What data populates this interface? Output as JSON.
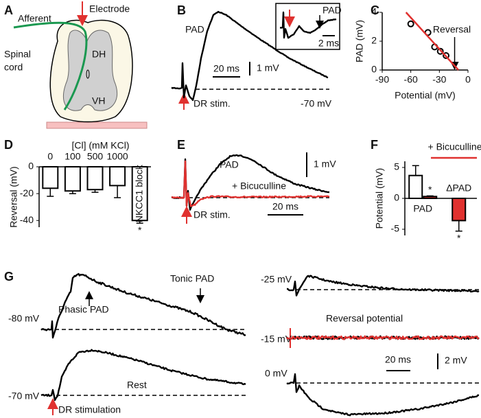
{
  "panel_labels": [
    "A",
    "B",
    "C",
    "D",
    "E",
    "F",
    "G"
  ],
  "panel_a": {
    "afferent": "Afferent",
    "electrode": "Electrode",
    "spinal_cord": [
      "Spinal",
      "cord"
    ],
    "dh": "DH",
    "vh": "VH"
  },
  "panel_b": {
    "pad": "PAD",
    "time_scale": "20 ms",
    "voltage_scale": "1 mV",
    "stimulus": "DR stim.",
    "rest": "-70 mV",
    "inset_pad": "PAD",
    "inset_time_scale": "2 ms"
  },
  "chart_data": [
    {
      "type": "scatter",
      "x_label": "Potential (mV)",
      "y_label": "PAD (mV)",
      "xlim": [
        -90,
        0
      ],
      "xticks": [
        -90,
        -60,
        -30,
        0
      ],
      "ylim": [
        0,
        4
      ],
      "yticks": [
        0,
        2,
        4
      ],
      "series": [
        {
          "color": "#000000",
          "x": [
            -60,
            -42,
            -35,
            -29,
            -23
          ],
          "values": [
            3.2,
            2.6,
            1.6,
            1.3,
            1.0
          ]
        },
        {
          "color": "#e0312f",
          "line": true,
          "x": [
            -65,
            -10
          ],
          "values": [
            4,
            0
          ]
        }
      ],
      "annotations": [
        {
          "text": "Reversal",
          "x": -14
        }
      ]
    },
    {
      "type": "bar",
      "title": "[Cl] (mM KCl)",
      "y_label": "Reversal (mV)",
      "categories": [
        "0",
        "100",
        "500",
        "1000",
        "NKCC1 block"
      ],
      "values": [
        -16,
        -18,
        -17,
        -14,
        -40
      ],
      "errors": [
        6,
        2,
        2,
        9,
        2
      ],
      "stars": [
        null,
        null,
        null,
        null,
        "*"
      ],
      "color": "#ffffff",
      "ylim": [
        -45,
        0
      ],
      "yticks": [
        0,
        -20,
        -40
      ]
    },
    {
      "type": "bar",
      "y_label": "Potential (mV)",
      "categories": [
        "PAD",
        "ΔPAD"
      ],
      "series": [
        {
          "color": "#ffffff",
          "values": [
            3.7,
            null
          ],
          "errors": [
            1.6,
            null
          ],
          "stars": [
            null,
            null
          ]
        },
        {
          "name": "+ Bicuculline",
          "color": "#e0312f",
          "values": [
            0.3,
            -3.6
          ],
          "errors": [
            0.1,
            1.7
          ],
          "stars": [
            "*",
            "*"
          ]
        }
      ],
      "ylim": [
        -6,
        6
      ],
      "yticks": [
        -5,
        0,
        5
      ]
    }
  ],
  "panel_e": {
    "pad": "PAD",
    "voltage_scale": "1 mV",
    "drug": "+ Bicuculline",
    "time_scale": "20 ms",
    "stimulus": "DR stim."
  },
  "panel_g": {
    "v80": "-80 mV",
    "phasic": "Phasic PAD",
    "tonic": "Tonic PAD",
    "v70": "-70 mV",
    "rest": "Rest",
    "stimulus": "DR stimulation",
    "v25": "-25 mV",
    "v15": "-15 mV",
    "reversal": "Reversal potential",
    "time_scale": "20 ms",
    "voltage_scale": "2 mV",
    "v0": "0 mV"
  }
}
